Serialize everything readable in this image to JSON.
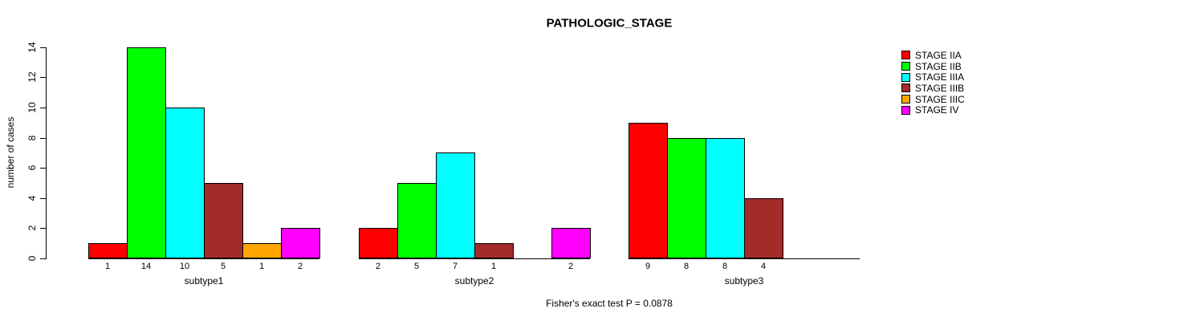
{
  "chart_data": {
    "type": "bar",
    "title": "PATHOLOGIC_STAGE",
    "ylabel": "number of cases",
    "xlabel": "",
    "caption": "Fisher's exact test P = 0.0878",
    "categories": [
      "subtype1",
      "subtype2",
      "subtype3"
    ],
    "series": [
      {
        "name": "STAGE IIA",
        "color": "#FF0000",
        "values": [
          1,
          2,
          9
        ]
      },
      {
        "name": "STAGE IIB",
        "color": "#00FF00",
        "values": [
          14,
          5,
          8
        ]
      },
      {
        "name": "STAGE IIIA",
        "color": "#00FFFF",
        "values": [
          10,
          7,
          8
        ]
      },
      {
        "name": "STAGE IIIB",
        "color": "#A52A2A",
        "values": [
          5,
          1,
          4
        ]
      },
      {
        "name": "STAGE IIIC",
        "color": "#FFA500",
        "values": [
          1,
          0,
          0
        ]
      },
      {
        "name": "STAGE IV",
        "color": "#FF00FF",
        "values": [
          2,
          2,
          0
        ]
      }
    ],
    "yticks": [
      0,
      2,
      4,
      6,
      8,
      10,
      12,
      14
    ],
    "ylim": [
      0,
      14
    ],
    "bar_value_labels_shown": true,
    "zero_bars_unlabeled": true,
    "legend_position": "right",
    "grid": false,
    "axis_color": "#000000",
    "background_color": "#FFFFFF"
  }
}
